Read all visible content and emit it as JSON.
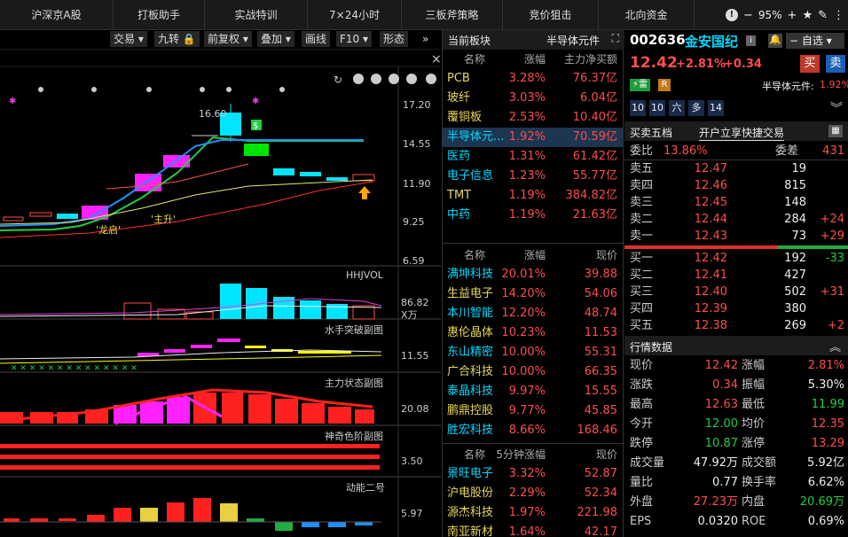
{
  "topbar": {
    "tabs": [
      "沪深京A股",
      "打板助手",
      "实战特训",
      "7×24小时",
      "三板斧策略",
      "竞价狙击",
      "北向资金"
    ],
    "zoom": "95%"
  },
  "toolbar": {
    "items": [
      "交易",
      "九转",
      "前复权",
      "叠加",
      "画线",
      "F10",
      "形态"
    ]
  },
  "chart": {
    "price_ticks": [
      "17.20",
      "14.55",
      "11.90",
      "9.25",
      "6.59"
    ],
    "high_label": "16.60",
    "annotations": [
      "'龙启'",
      "'主升'"
    ],
    "indicators": [
      {
        "name": "HHJVOL",
        "value": "86.82",
        "unit": "X万"
      },
      {
        "name": "水手突破副图",
        "value": "11.55"
      },
      {
        "name": "主力状态副图",
        "value": "20.08"
      },
      {
        "name": "神奇色阶副图",
        "value": "3.50"
      },
      {
        "name": "动能二号",
        "value": "5.97"
      }
    ]
  },
  "sector": {
    "title": "当前板块",
    "right": "半导体元件",
    "headers": [
      "名称",
      "涨幅",
      "主力净买额"
    ],
    "rows": [
      {
        "name": "PCB",
        "chg": "3.28%",
        "amt": "76.37亿"
      },
      {
        "name": "玻纤",
        "chg": "3.03%",
        "amt": "6.04亿"
      },
      {
        "name": "覆铜板",
        "chg": "2.53%",
        "amt": "10.40亿"
      },
      {
        "name": "半导体元...",
        "chg": "1.92%",
        "amt": "70.59亿"
      },
      {
        "name": "医药",
        "chg": "1.31%",
        "amt": "61.42亿"
      },
      {
        "name": "电子信息",
        "chg": "1.23%",
        "amt": "55.77亿"
      },
      {
        "name": "TMT",
        "chg": "1.19%",
        "amt": "384.82亿"
      },
      {
        "name": "中药",
        "chg": "1.19%",
        "amt": "21.63亿"
      }
    ]
  },
  "stocks": {
    "headers": [
      "名称",
      "涨幅",
      "现价"
    ],
    "rows": [
      {
        "name": "满坤科技",
        "chg": "20.01%",
        "price": "39.88"
      },
      {
        "name": "生益电子",
        "chg": "14.20%",
        "price": "54.06"
      },
      {
        "name": "本川智能",
        "chg": "12.20%",
        "price": "48.74"
      },
      {
        "name": "惠伦晶体",
        "chg": "10.23%",
        "price": "11.53"
      },
      {
        "name": "东山精密",
        "chg": "10.00%",
        "price": "55.31"
      },
      {
        "name": "广合科技",
        "chg": "10.00%",
        "price": "66.35"
      },
      {
        "name": "泰晶科技",
        "chg": "9.97%",
        "price": "15.55"
      },
      {
        "name": "鹏鼎控股",
        "chg": "9.77%",
        "price": "45.85"
      },
      {
        "name": "胜宏科技",
        "chg": "8.66%",
        "price": "168.46"
      }
    ]
  },
  "speed": {
    "headers": [
      "名称",
      "5分钟涨幅",
      "现价"
    ],
    "rows": [
      {
        "name": "景旺电子",
        "chg": "3.32%",
        "price": "52.87"
      },
      {
        "name": "沪电股份",
        "chg": "2.29%",
        "price": "52.34"
      },
      {
        "name": "源杰科技",
        "chg": "1.97%",
        "price": "221.98"
      },
      {
        "name": "南亚新材",
        "chg": "1.64%",
        "price": "42.17"
      }
    ]
  },
  "quote": {
    "code": "002636",
    "name": "金安国纪",
    "select_label": "自选",
    "price": "12.42",
    "chg_pct": "+2.81%",
    "chg": "+0.34",
    "buy": "买",
    "sell": "卖",
    "tags": [
      "雷",
      "R"
    ],
    "industry": "半导体元件:",
    "industry_pct": "1.92%",
    "nine": [
      "10",
      "10",
      "六",
      "多",
      "14"
    ],
    "five_title": "买卖五档",
    "quick_trade": "开户立享快捷交易",
    "weibi_label": "委比",
    "weibi": "13.86%",
    "weicha_label": "委差",
    "weicha": "431",
    "sells": [
      {
        "n": "卖五",
        "p": "12.47",
        "v": "19",
        "d": ""
      },
      {
        "n": "卖四",
        "p": "12.46",
        "v": "815",
        "d": ""
      },
      {
        "n": "卖三",
        "p": "12.45",
        "v": "148",
        "d": ""
      },
      {
        "n": "卖二",
        "p": "12.44",
        "v": "284",
        "d": "+24"
      },
      {
        "n": "卖一",
        "p": "12.43",
        "v": "73",
        "d": "+29"
      }
    ],
    "buys": [
      {
        "n": "买一",
        "p": "12.42",
        "v": "192",
        "d": "-33"
      },
      {
        "n": "买二",
        "p": "12.41",
        "v": "427",
        "d": ""
      },
      {
        "n": "买三",
        "p": "12.40",
        "v": "502",
        "d": "+31"
      },
      {
        "n": "买四",
        "p": "12.39",
        "v": "380",
        "d": ""
      },
      {
        "n": "买五",
        "p": "12.38",
        "v": "269",
        "d": "+2"
      }
    ],
    "market_title": "行情数据",
    "stats": [
      {
        "a": "现价",
        "b": "12.42",
        "c": "涨幅",
        "e": "2.81%"
      },
      {
        "a": "涨跌",
        "b": "0.34",
        "c": "振幅",
        "e": "5.30%"
      },
      {
        "a": "最高",
        "b": "12.63",
        "c": "最低",
        "e": "11.99"
      },
      {
        "a": "今开",
        "b": "12.00",
        "c": "均价",
        "e": "12.35"
      },
      {
        "a": "跌停",
        "b": "10.87",
        "c": "涨停",
        "e": "13.29"
      },
      {
        "a": "成交量",
        "b": "47.92万",
        "c": "成交额",
        "e": "5.92亿"
      },
      {
        "a": "量比",
        "b": "0.77",
        "c": "换手率",
        "e": "6.62%"
      },
      {
        "a": "外盘",
        "b": "27.23万",
        "c": "内盘",
        "e": "20.69万"
      },
      {
        "a": "EPS",
        "b": "0.0320",
        "c": "ROE",
        "e": "0.69%"
      }
    ]
  },
  "colors": {
    "up": "#ff4d4d",
    "down": "#22cc44",
    "accent": "#00d8ff"
  }
}
